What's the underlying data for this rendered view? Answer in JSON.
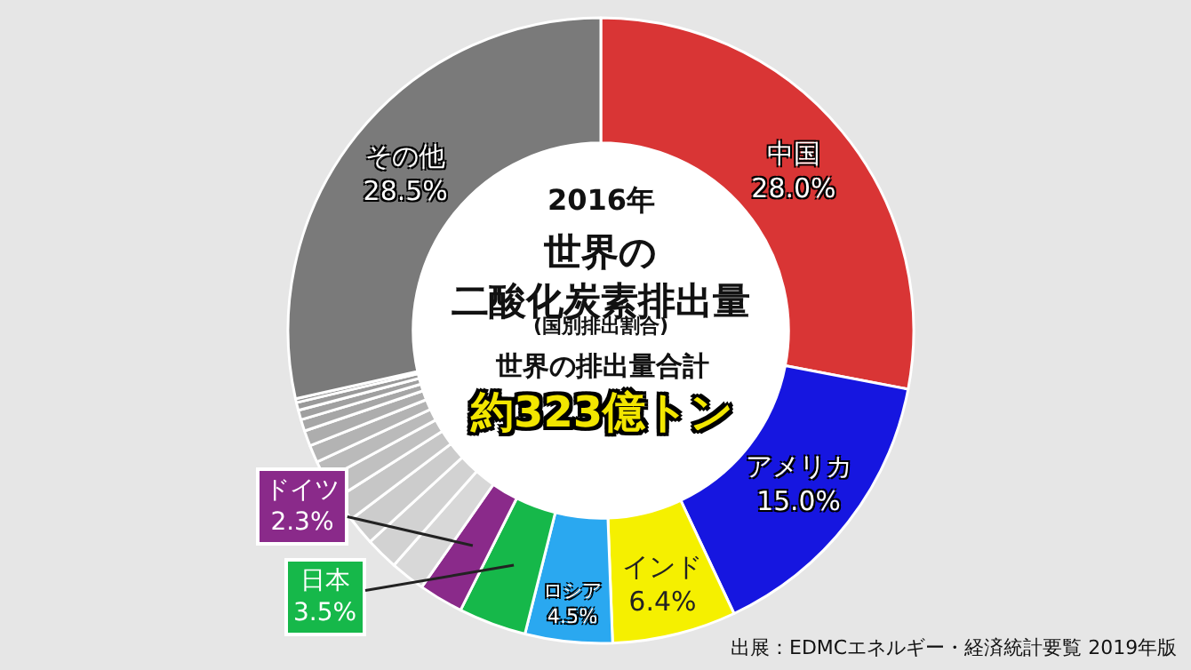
{
  "chart_data": {
    "type": "donut",
    "title": "世界の二酸化炭素排出量",
    "annotations": [
      "2016年",
      "(国別排出割合)",
      "世界の排出量合計",
      "約323億トン",
      "出展：EDMCエネルギー・経済統計要覧 2019年版"
    ],
    "categories": [
      "中国",
      "アメリカ",
      "インド",
      "ロシア",
      "日本",
      "ドイツ",
      null,
      null,
      null,
      null,
      null,
      null,
      null,
      null,
      null,
      null,
      null,
      null,
      "その他"
    ],
    "values": [
      28.0,
      15.0,
      6.4,
      4.5,
      3.5,
      2.3,
      1.8,
      1.7,
      1.5,
      1.3,
      1.1,
      1.0,
      0.9,
      0.8,
      0.6,
      0.5,
      0.4,
      0.2,
      28.5
    ],
    "value_labels": [
      "28.0%",
      "15.0%",
      "6.4%",
      "4.5%",
      "3.5%",
      "2.3%",
      null,
      null,
      null,
      null,
      null,
      null,
      null,
      null,
      null,
      null,
      null,
      null,
      "28.5%"
    ],
    "colors": [
      "#d93535",
      "#1616e0",
      "#f5f000",
      "#2aa8f0",
      "#16b84a",
      "#8a2a8a",
      "#d8d8d8",
      "#d2d2d2",
      "#cccccc",
      "#c6c6c6",
      "#c0c0c0",
      "#bababa",
      "#b3b3b3",
      "#adadad",
      "#a6a6a6",
      "#a0a0a0",
      "#999999",
      "#929292",
      "#7a7a7a"
    ]
  }
}
